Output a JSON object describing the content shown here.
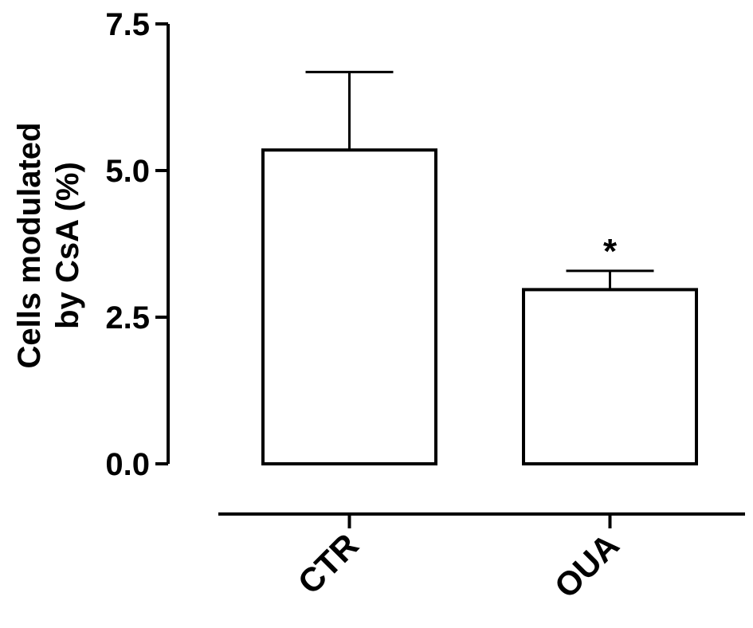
{
  "chart_data": {
    "type": "bar",
    "title": "",
    "xlabel": "",
    "ylabel_lines": [
      "Cells modulated",
      "by CsA (%)"
    ],
    "ylim": [
      0,
      7.5
    ],
    "yticks": [
      "0.0",
      "2.5",
      "5.0",
      "7.5"
    ],
    "ytick_values": [
      0,
      2.5,
      5.0,
      7.5
    ],
    "categories": [
      "CTR",
      "OUA"
    ],
    "values": [
      5.35,
      2.97
    ],
    "errors": [
      1.33,
      0.32
    ],
    "annotations": [
      "",
      "*"
    ],
    "grid": false,
    "bar_fill": "#ffffff",
    "bar_stroke": "#000000"
  }
}
